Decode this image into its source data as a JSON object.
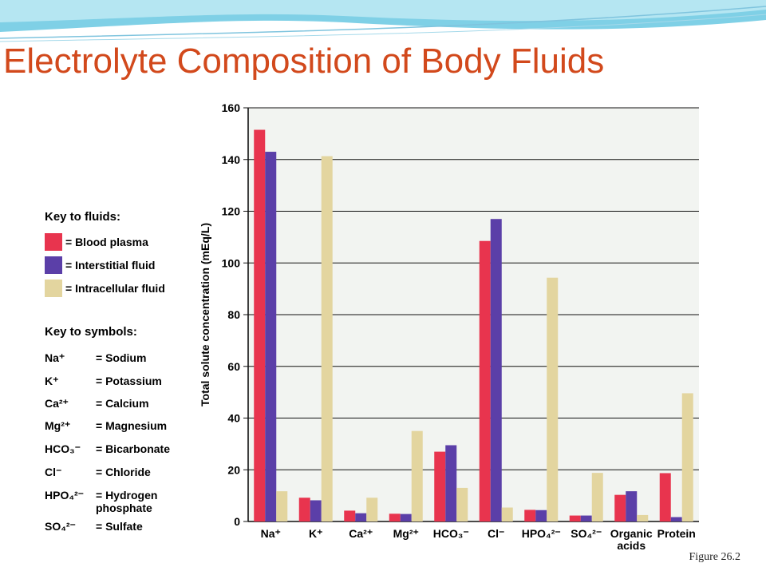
{
  "slide": {
    "title": "Electrolyte Composition of Body Fluids",
    "figure_caption": "Figure 26.2"
  },
  "colors": {
    "title": "#d2491c",
    "plasma": "#e8344e",
    "interstitial": "#5b3fa8",
    "intracellular": "#e3d59f",
    "plot_background": "#f2f4f1"
  },
  "legend": {
    "fluids_heading": "Key to fluids:",
    "fluids": [
      {
        "label": "= Blood plasma",
        "color": "#e8344e"
      },
      {
        "label": "= Interstitial fluid",
        "color": "#5b3fa8"
      },
      {
        "label": "= Intracellular fluid",
        "color": "#e3d59f"
      }
    ],
    "symbols_heading": "Key to symbols:",
    "symbols": [
      {
        "abbr": "Na⁺",
        "name": "= Sodium"
      },
      {
        "abbr": "K⁺",
        "name": "= Potassium"
      },
      {
        "abbr": "Ca²⁺",
        "name": "= Calcium"
      },
      {
        "abbr": "Mg²⁺",
        "name": "= Magnesium"
      },
      {
        "abbr": "HCO₃⁻",
        "name": "= Bicarbonate"
      },
      {
        "abbr": "Cl⁻",
        "name": "= Chloride"
      },
      {
        "abbr": "HPO₄²⁻",
        "name": "= Hydrogen phosphate"
      },
      {
        "abbr": "SO₄²⁻",
        "name": "= Sulfate"
      }
    ]
  },
  "chart_data": {
    "type": "bar",
    "ylabel": "Total solute concentration (mEq/L)",
    "xlabel": "",
    "ylim": [
      0,
      160
    ],
    "yticks": [
      0,
      20,
      40,
      60,
      80,
      100,
      120,
      140,
      160
    ],
    "grid": "horizontal",
    "categories": [
      "Na⁺",
      "K⁺",
      "Ca²⁺",
      "Mg²⁺",
      "HCO₃⁻",
      "Cl⁻",
      "HPO₄²⁻",
      "SO₄²⁻",
      "Organic acids",
      "Protein"
    ],
    "series": [
      {
        "name": "Blood plasma",
        "color": "#e8344e",
        "values": [
          151.5,
          9.2,
          4.2,
          3.0,
          27.0,
          108.5,
          4.5,
          2.3,
          10.3,
          18.7
        ]
      },
      {
        "name": "Interstitial fluid",
        "color": "#5b3fa8",
        "values": [
          143.0,
          8.2,
          3.2,
          2.9,
          29.5,
          117.0,
          4.4,
          2.3,
          11.7,
          1.7
        ]
      },
      {
        "name": "Intracellular fluid",
        "color": "#e3d59f",
        "values": [
          11.7,
          141.3,
          9.2,
          35.0,
          13.0,
          5.4,
          94.3,
          18.8,
          2.5,
          49.6
        ]
      }
    ]
  }
}
